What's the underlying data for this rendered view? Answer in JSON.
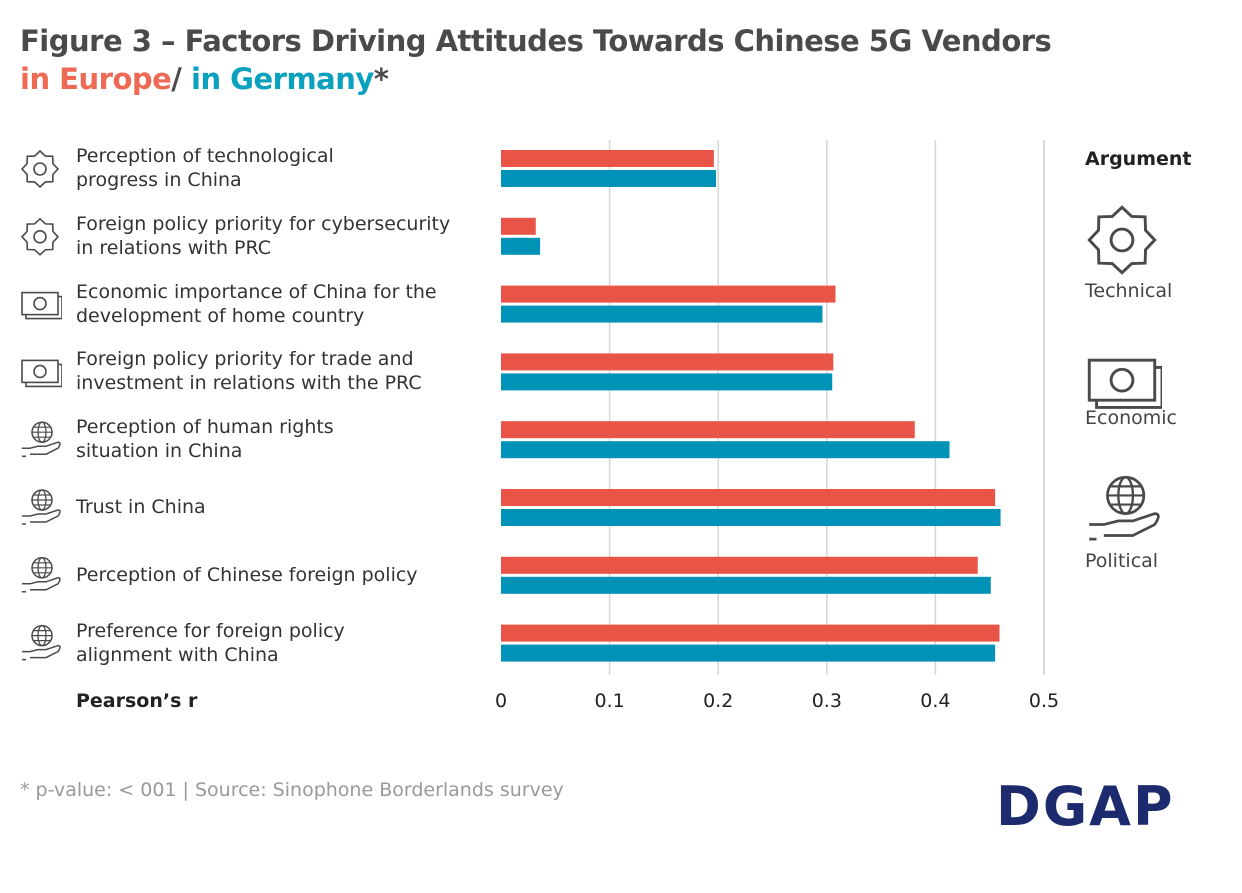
{
  "title_line1": "Figure 3 – Factors Driving Attitudes Towards Chinese 5G Vendors",
  "title_europe": "in Europe",
  "title_sep": "/ ",
  "title_germany": "in Germany",
  "title_star": "*",
  "footnote": "* p-value: < 001  |  Source: Sinophone Borderlands survey",
  "logo": "DGAP",
  "legend": {
    "title": "Argument",
    "items": [
      {
        "label": "Technical",
        "icon": "gear-icon"
      },
      {
        "label": "Economic",
        "icon": "banknote-icon"
      },
      {
        "label": "Political",
        "icon": "globe-hand-icon"
      }
    ]
  },
  "colors": {
    "europe": "#e85446",
    "germany": "#0092b7",
    "grid": "#d6d6d6"
  },
  "chart_data": {
    "type": "bar",
    "orientation": "horizontal",
    "xlabel": "Pearson’s r",
    "xlim": [
      0,
      0.5
    ],
    "xticks": [
      "0",
      "0.1",
      "0.2",
      "0.3",
      "0.4",
      "0.5"
    ],
    "grid": true,
    "categories": [
      {
        "label": "Perception of technological progress in China",
        "lines": [
          "Perception of technological",
          "progress in China"
        ],
        "argument": "Technical",
        "icon": "gear-icon"
      },
      {
        "label": "Foreign policy priority for cybersecurity in relations with PRC",
        "lines": [
          "Foreign policy priority for cybersecurity",
          "in relations with PRC"
        ],
        "argument": "Technical",
        "icon": "gear-icon"
      },
      {
        "label": "Economic importance of China for the development of home country",
        "lines": [
          "Economic importance of China for the",
          "development of home country"
        ],
        "argument": "Economic",
        "icon": "banknote-icon"
      },
      {
        "label": "Foreign policy priority for trade and investment in relations with the PRC",
        "lines": [
          "Foreign policy priority for trade and",
          "investment in relations with the PRC"
        ],
        "argument": "Economic",
        "icon": "banknote-icon"
      },
      {
        "label": "Perception of human rights situation in China",
        "lines": [
          "Perception of human rights",
          "situation in China"
        ],
        "argument": "Political",
        "icon": "globe-hand-icon"
      },
      {
        "label": "Trust in China",
        "lines": [
          "Trust in China"
        ],
        "argument": "Political",
        "icon": "globe-hand-icon"
      },
      {
        "label": "Perception of Chinese foreign policy",
        "lines": [
          "Perception of Chinese foreign policy"
        ],
        "argument": "Political",
        "icon": "globe-hand-icon"
      },
      {
        "label": "Preference for foreign policy alignment with China",
        "lines": [
          "Preference for foreign policy",
          "alignment with China"
        ],
        "argument": "Political",
        "icon": "globe-hand-icon"
      }
    ],
    "series": [
      {
        "name": "in Europe",
        "values": [
          0.196,
          0.032,
          0.308,
          0.306,
          0.381,
          0.455,
          0.439,
          0.459
        ]
      },
      {
        "name": "in Germany",
        "values": [
          0.198,
          0.036,
          0.296,
          0.305,
          0.413,
          0.46,
          0.451,
          0.455
        ]
      }
    ]
  }
}
